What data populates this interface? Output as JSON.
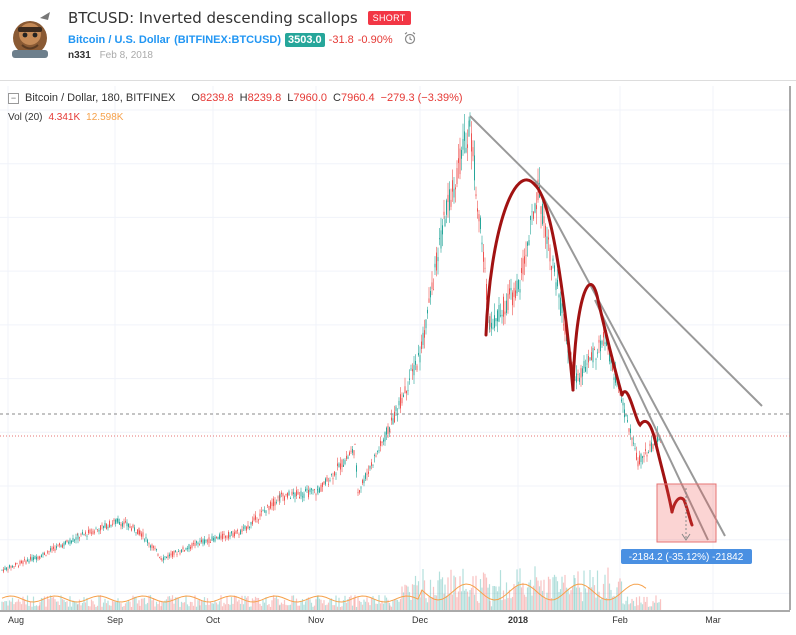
{
  "header": {
    "title": "BTCUSD: Inverted descending scallops",
    "badge": "SHORT",
    "symbol": "Bitcoin / U.S. Dollar",
    "symbol_code": "(BITFINEX:BTCUSD)",
    "price": "3503.0",
    "change": "-31.8",
    "change_pct": "-0.90%",
    "author": "n331",
    "date": "Feb 8, 2018"
  },
  "legend": {
    "instrument": "Bitcoin / Dollar, 180, BITFINEX",
    "o_label": "O",
    "o": "8239.8",
    "h_label": "H",
    "h": "8239.8",
    "l_label": "L",
    "l": "7960.0",
    "c_label": "C",
    "c": "7960.4",
    "change": "−279.3 (−3.39%)",
    "vol_label": "Vol (20)",
    "vol_a": "4.341K",
    "vol_b": "12.598K"
  },
  "measure_label": "-2184.2 (-35.12%) -21842",
  "colors": {
    "up": "#26a69a",
    "down": "#ef5350",
    "scallop": "#a11212",
    "trendline": "#999999",
    "measure": "#4a90e2"
  },
  "chart_data": {
    "type": "candlestick",
    "x_tick_labels": [
      "Aug",
      "Sep",
      "Oct",
      "Nov",
      "Dec",
      "2018",
      "Feb",
      "Mar"
    ],
    "series": [
      {
        "values": [
          [
            "Jul 31",
            2870
          ],
          [
            "Aug 10",
            3400
          ],
          [
            "Aug 20",
            4100
          ],
          [
            "Aug 31",
            4700
          ],
          [
            "Sep 10",
            4300
          ],
          [
            "Sep 15",
            3300
          ],
          [
            "Sep 25",
            3900
          ],
          [
            "Oct 5",
            4300
          ],
          [
            "Oct 15",
            5600
          ],
          [
            "Oct 25",
            5800
          ],
          [
            "Nov 5",
            7400
          ],
          [
            "Nov 12",
            5800
          ],
          [
            "Nov 20",
            8200
          ],
          [
            "Nov 30",
            10900
          ],
          [
            "Dec 7",
            16000
          ],
          [
            "Dec 17",
            19500
          ],
          [
            "Dec 22",
            12000
          ],
          [
            "Jan 1",
            13500
          ],
          [
            "Jan 6",
            17100
          ],
          [
            "Jan 17",
            9900
          ],
          [
            "Jan 28",
            11500
          ],
          [
            "Feb 5",
            6900
          ],
          [
            "Feb 8",
            7960
          ]
        ]
      }
    ],
    "annotations": {
      "scallops": 4,
      "descending_trendlines": 3,
      "measure_change": -2184.2,
      "measure_change_pct": -35.12
    }
  }
}
